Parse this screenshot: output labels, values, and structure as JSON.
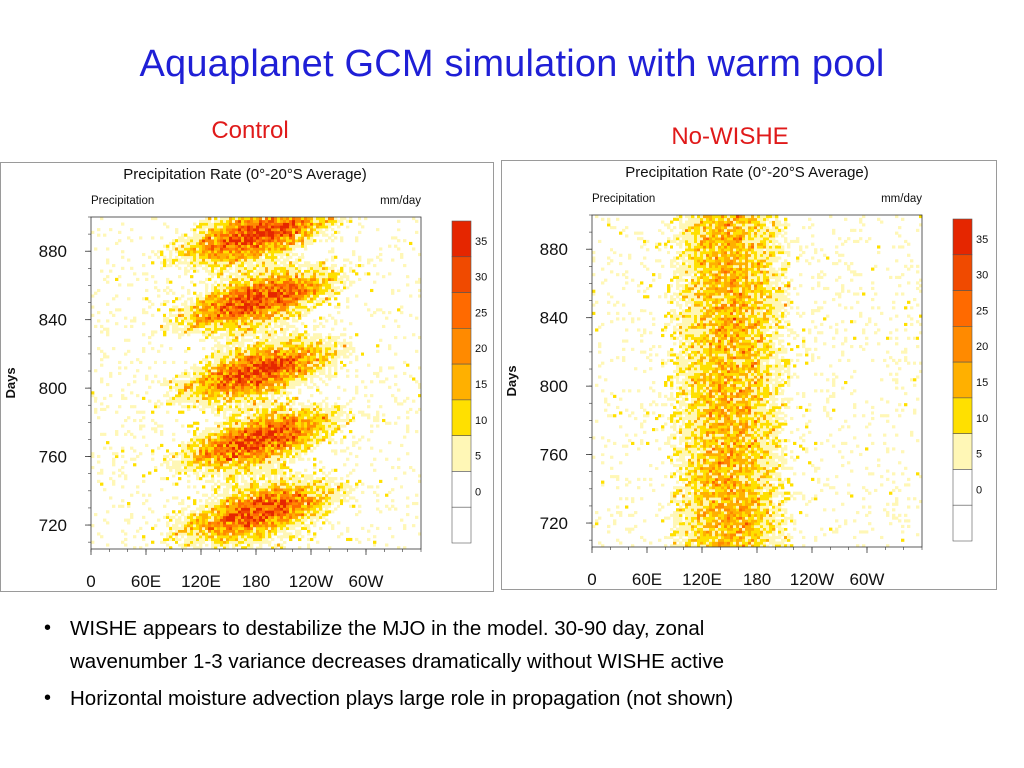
{
  "slide": {
    "title": "Aquaplanet GCM simulation with warm pool"
  },
  "panels": {
    "left_label": "Control",
    "right_label": "No-WISHE"
  },
  "bullets": [
    {
      "lines": [
        "WISHE appears to destabilize the MJO in the model. 30-90 day, zonal",
        "wavenumber 1-3 variance decreases dramatically without WISHE active"
      ]
    },
    {
      "lines": [
        "Horizontal moisture advection plays large role in propagation (not shown)"
      ]
    }
  ],
  "chart_data": [
    {
      "type": "heatmap",
      "panel_label": "Control",
      "title": "Precipitation Rate (0°-20°S Average)",
      "left_subtitle": "Precipitation",
      "right_subtitle": "mm/day",
      "xlabel": "",
      "ylabel": "Days",
      "x_ticks": [
        "0",
        "60E",
        "120E",
        "180",
        "120W",
        "60W"
      ],
      "xlim": [
        0,
        360
      ],
      "y_ticks": [
        "720",
        "760",
        "800",
        "840",
        "880"
      ],
      "ylim": [
        706,
        900
      ],
      "colorbar": {
        "ticks": [
          "35",
          "30",
          "25",
          "20",
          "15",
          "10",
          "5",
          "0"
        ],
        "levels": [
          {
            "min": -5,
            "max": 0,
            "color": "#ffffff"
          },
          {
            "min": 0,
            "max": 5,
            "color": "#ffffff"
          },
          {
            "min": 5,
            "max": 10,
            "color": "#fff7b6"
          },
          {
            "min": 10,
            "max": 15,
            "color": "#ffe000"
          },
          {
            "min": 15,
            "max": 20,
            "color": "#ffb000"
          },
          {
            "min": 20,
            "max": 25,
            "color": "#ff8a00"
          },
          {
            "min": 25,
            "max": 30,
            "color": "#ff6a00"
          },
          {
            "min": 30,
            "max": 35,
            "color": "#f04a00"
          },
          {
            "min": 35,
            "max": 40,
            "color": "#e52600"
          }
        ]
      },
      "field": {
        "pattern": "eastward-propagating MJO-like envelopes",
        "band_center_lon": 180,
        "band_width_lon": 90,
        "active_phase_days": [
          728,
          770,
          810,
          852,
          890
        ]
      }
    },
    {
      "type": "heatmap",
      "panel_label": "No-WISHE",
      "title": "Precipitation Rate (0°-20°S Average)",
      "left_subtitle": "Precipitation",
      "right_subtitle": "mm/day",
      "xlabel": "",
      "ylabel": "Days",
      "x_ticks": [
        "0",
        "60E",
        "120E",
        "180",
        "120W",
        "60W"
      ],
      "xlim": [
        0,
        360
      ],
      "y_ticks": [
        "720",
        "760",
        "800",
        "840",
        "880"
      ],
      "ylim": [
        706,
        900
      ],
      "colorbar": {
        "ticks": [
          "35",
          "30",
          "25",
          "20",
          "15",
          "10",
          "5",
          "0"
        ],
        "levels": [
          {
            "min": -5,
            "max": 0,
            "color": "#ffffff"
          },
          {
            "min": 0,
            "max": 5,
            "color": "#ffffff"
          },
          {
            "min": 5,
            "max": 10,
            "color": "#fff7b6"
          },
          {
            "min": 10,
            "max": 15,
            "color": "#ffe000"
          },
          {
            "min": 15,
            "max": 20,
            "color": "#ffb000"
          },
          {
            "min": 20,
            "max": 25,
            "color": "#ff8a00"
          },
          {
            "min": 25,
            "max": 30,
            "color": "#ff6a00"
          },
          {
            "min": 30,
            "max": 35,
            "color": "#f04a00"
          },
          {
            "min": 35,
            "max": 40,
            "color": "#e52600"
          }
        ]
      },
      "field": {
        "pattern": "quasi-stationary convection over warm pool",
        "band_center_lon": 150,
        "band_width_lon": 95,
        "active_phase_days": []
      }
    }
  ]
}
